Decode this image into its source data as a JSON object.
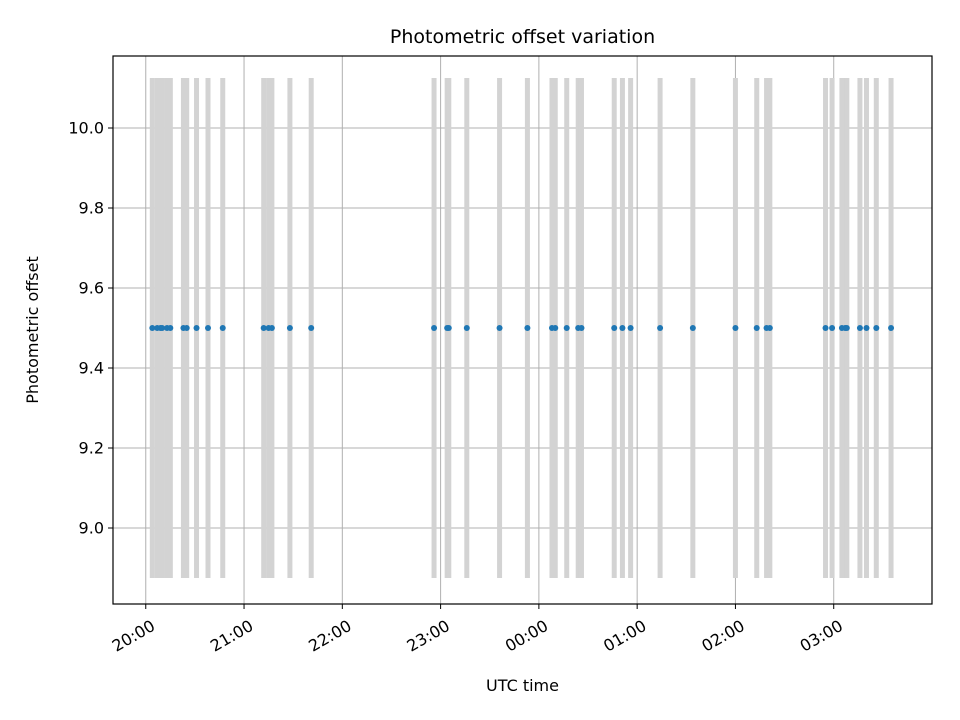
{
  "chart_data": {
    "type": "scatter",
    "title": "Photometric offset variation",
    "xlabel": "UTC time",
    "ylabel": "Photometric offset",
    "x_unit": "time (HH:MM, UTC)",
    "xlim": [
      "19:40",
      "04:00"
    ],
    "ylim": [
      8.81,
      10.18
    ],
    "x_tick_labels": [
      "20:00",
      "21:00",
      "22:00",
      "23:00",
      "00:00",
      "01:00",
      "02:00",
      "03:00"
    ],
    "y_tick_values": [
      9.0,
      9.2,
      9.4,
      9.6,
      9.8,
      10.0
    ],
    "y_tick_labels": [
      "9.0",
      "9.2",
      "9.4",
      "9.6",
      "9.8",
      "10.0"
    ],
    "grid": true,
    "colors": {
      "points": "#1f77b4",
      "error_bars": "#d3d3d3",
      "grid": "#b0b0b0",
      "axes": "#000000"
    },
    "error_bar_range": [
      8.875,
      10.125
    ],
    "points": [
      {
        "t": "20:04",
        "y": 9.5
      },
      {
        "t": "20:07",
        "y": 9.5
      },
      {
        "t": "20:09",
        "y": 9.5
      },
      {
        "t": "20:10",
        "y": 9.5
      },
      {
        "t": "20:13",
        "y": 9.5
      },
      {
        "t": "20:15",
        "y": 9.5
      },
      {
        "t": "20:23",
        "y": 9.5
      },
      {
        "t": "20:25",
        "y": 9.5
      },
      {
        "t": "20:31",
        "y": 9.5
      },
      {
        "t": "20:38",
        "y": 9.5
      },
      {
        "t": "20:47",
        "y": 9.5
      },
      {
        "t": "21:12",
        "y": 9.5
      },
      {
        "t": "21:15",
        "y": 9.5
      },
      {
        "t": "21:17",
        "y": 9.5
      },
      {
        "t": "21:28",
        "y": 9.5
      },
      {
        "t": "21:41",
        "y": 9.5
      },
      {
        "t": "22:56",
        "y": 9.5
      },
      {
        "t": "23:04",
        "y": 9.5
      },
      {
        "t": "23:05",
        "y": 9.5
      },
      {
        "t": "23:16",
        "y": 9.5
      },
      {
        "t": "23:36",
        "y": 9.5
      },
      {
        "t": "23:53",
        "y": 9.5
      },
      {
        "t": "00:08",
        "y": 9.5
      },
      {
        "t": "00:10",
        "y": 9.5
      },
      {
        "t": "00:17",
        "y": 9.5
      },
      {
        "t": "00:24",
        "y": 9.5
      },
      {
        "t": "00:26",
        "y": 9.5
      },
      {
        "t": "00:46",
        "y": 9.5
      },
      {
        "t": "00:51",
        "y": 9.5
      },
      {
        "t": "00:56",
        "y": 9.5
      },
      {
        "t": "01:14",
        "y": 9.5
      },
      {
        "t": "01:34",
        "y": 9.5
      },
      {
        "t": "02:00",
        "y": 9.5
      },
      {
        "t": "02:13",
        "y": 9.5
      },
      {
        "t": "02:19",
        "y": 9.5
      },
      {
        "t": "02:21",
        "y": 9.5
      },
      {
        "t": "02:55",
        "y": 9.5
      },
      {
        "t": "02:59",
        "y": 9.5
      },
      {
        "t": "03:05",
        "y": 9.5
      },
      {
        "t": "03:07",
        "y": 9.5
      },
      {
        "t": "03:08",
        "y": 9.5
      },
      {
        "t": "03:16",
        "y": 9.5
      },
      {
        "t": "03:20",
        "y": 9.5
      },
      {
        "t": "03:26",
        "y": 9.5
      },
      {
        "t": "03:35",
        "y": 9.5
      }
    ]
  }
}
